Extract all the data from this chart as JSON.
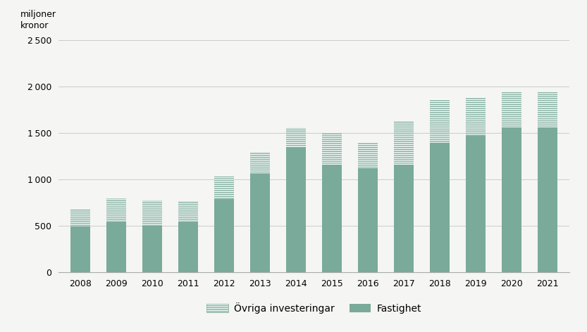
{
  "years": [
    2008,
    2009,
    2010,
    2011,
    2012,
    2013,
    2014,
    2015,
    2016,
    2017,
    2018,
    2019,
    2020,
    2021
  ],
  "fastighet": [
    490,
    545,
    500,
    540,
    790,
    1060,
    1340,
    1150,
    1120,
    1150,
    1395,
    1475,
    1560,
    1560
  ],
  "ovriga": [
    185,
    250,
    270,
    225,
    240,
    225,
    215,
    340,
    280,
    470,
    470,
    400,
    380,
    375
  ],
  "bar_color_fastighet": "#7aaa9a",
  "bar_color_ovriga_fill": "#ffffff",
  "bar_color_ovriga_hatch": "#7aaa9a",
  "background_color": "#f5f5f3",
  "grid_color": "#cccccc",
  "ylabel_line1": "miljoner",
  "ylabel_line2": "kronor",
  "ylim": [
    0,
    2500
  ],
  "yticks": [
    0,
    500,
    1000,
    1500,
    2000,
    2500
  ],
  "legend_label_ovriga": "Övriga investeringar",
  "legend_label_fastighet": "Fastighet",
  "tick_fontsize": 9,
  "legend_fontsize": 10
}
